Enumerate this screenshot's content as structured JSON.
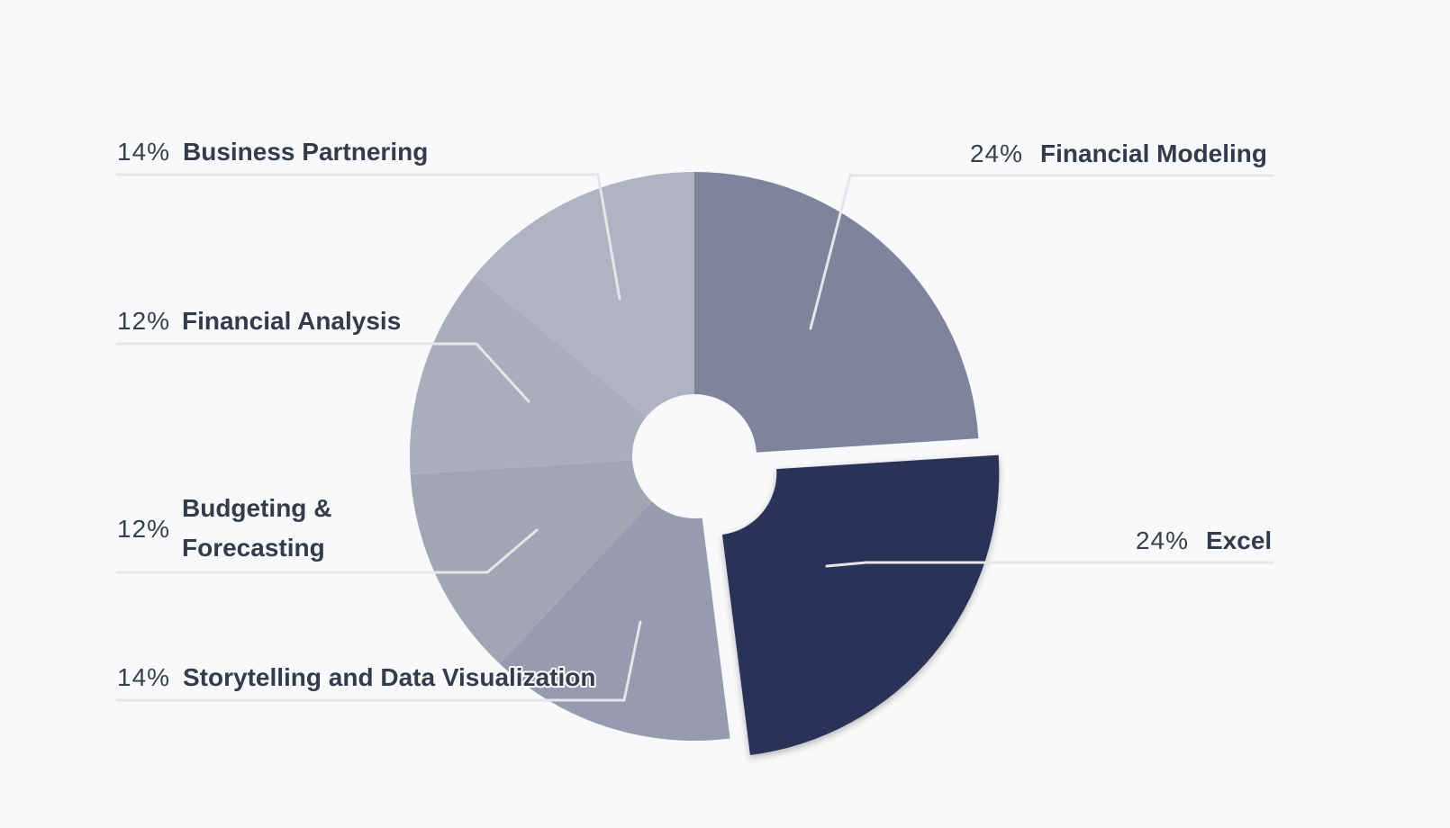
{
  "chart_data": {
    "type": "pie",
    "donut": true,
    "start_angle_deg": 0,
    "direction": "clockwise",
    "exploded_slice": "Excel",
    "title": "",
    "slices": [
      {
        "label": "Financial Modeling",
        "value": 24,
        "value_label": "24%",
        "color": "#80839c"
      },
      {
        "label": "Excel",
        "value": 24,
        "value_label": "24%",
        "color": "#293059"
      },
      {
        "label": "Storytelling and Data Visualization",
        "value": 14,
        "value_label": "14%",
        "color": "#989bae"
      },
      {
        "label": "Budgeting & Forecasting",
        "value": 12,
        "value_label": "12%",
        "color": "#a3a5b6"
      },
      {
        "label": "Financial Analysis",
        "value": 12,
        "value_label": "12%",
        "color": "#abadbd"
      },
      {
        "label": "Business Partnering",
        "value": 14,
        "value_label": "14%",
        "color": "#b1b3c3"
      }
    ]
  }
}
